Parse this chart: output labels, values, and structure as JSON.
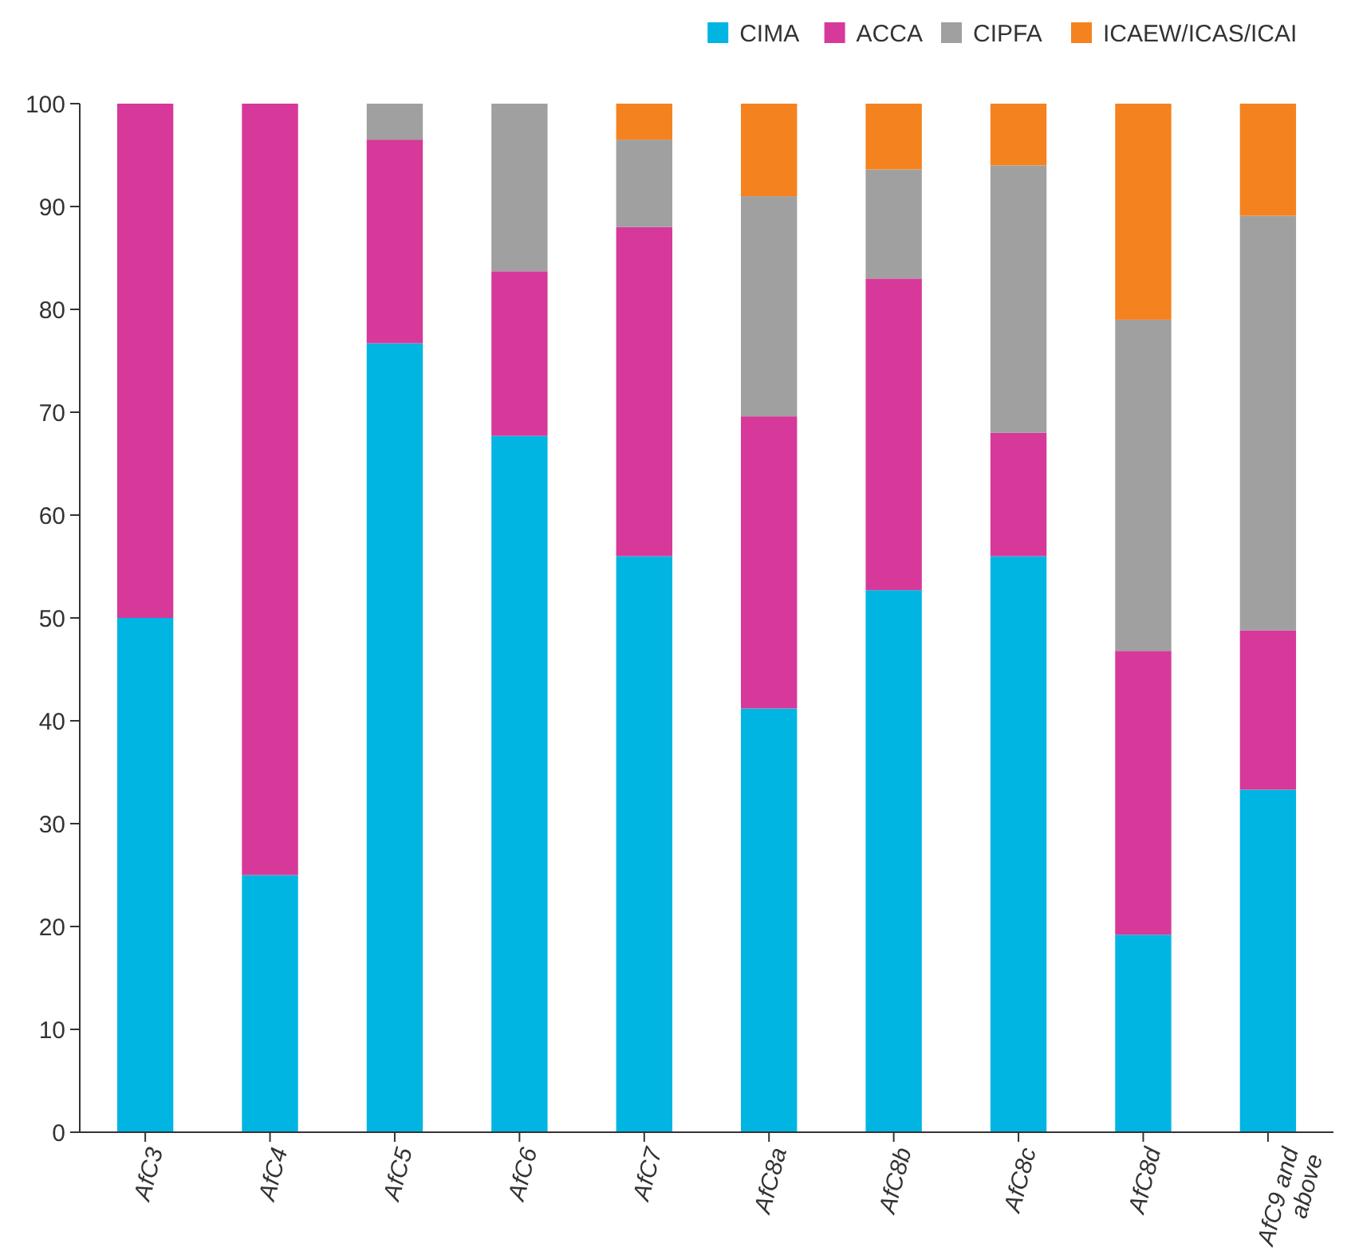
{
  "chart_data": {
    "type": "bar",
    "stacked": true,
    "categories": [
      "AfC3",
      "AfC4",
      "AfC5",
      "AfC6",
      "AfC7",
      "AfC8a",
      "AfC8b",
      "AfC8c",
      "AfC8d",
      "AfC9 and above"
    ],
    "series": [
      {
        "name": "CIMA",
        "color": "#00b5e2",
        "values": [
          50,
          25,
          76.7,
          67.7,
          56,
          41.2,
          52.7,
          56,
          19.2,
          33.3
        ]
      },
      {
        "name": "ACCA",
        "color": "#d6399a",
        "values": [
          50,
          75,
          19.8,
          16,
          32,
          28.4,
          30.3,
          12,
          27.6,
          15.5
        ]
      },
      {
        "name": "CIPFA",
        "color": "#a0a0a0",
        "values": [
          0,
          0,
          3.5,
          16.3,
          8.5,
          21.4,
          10.6,
          26,
          32.2,
          40.3
        ]
      },
      {
        "name": "ICAEW/ICAS/ICAI",
        "color": "#f4821f",
        "values": [
          0,
          0,
          0,
          0,
          3.5,
          9,
          6.4,
          6,
          21,
          10.9
        ]
      }
    ],
    "ylim": [
      0,
      100
    ],
    "yticks": [
      0,
      10,
      20,
      30,
      40,
      50,
      60,
      70,
      80,
      90,
      100
    ],
    "legend": "top right"
  }
}
